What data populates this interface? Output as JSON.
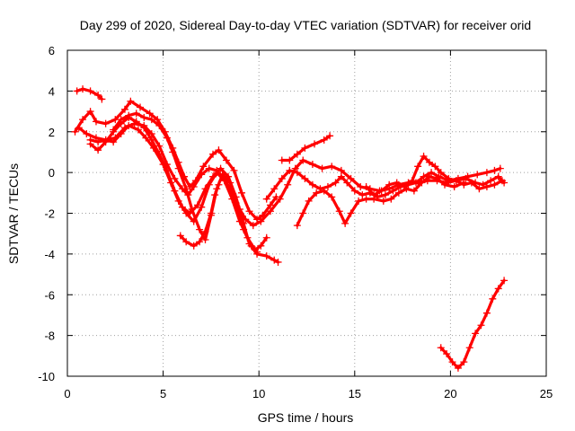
{
  "chart_data": {
    "type": "scatter",
    "title": "Day 299 of 2020, Sidereal Day-to-day VTEC variation (SDTVAR) for receiver orid",
    "xlabel": "GPS time / hours",
    "ylabel": "SDTVAR / TECUs",
    "xlim": [
      0,
      25
    ],
    "ylim": [
      -10,
      6
    ],
    "xticks": [
      0,
      5,
      10,
      15,
      20,
      25
    ],
    "xtick_labels": [
      "0",
      "5",
      "10",
      "15",
      "20",
      "25"
    ],
    "yticks": [
      -10,
      -8,
      -6,
      -4,
      -2,
      0,
      2,
      4,
      6
    ],
    "ytick_labels": [
      "-10",
      "-8",
      "-6",
      "-4",
      "-2",
      "0",
      "2",
      "4",
      "6"
    ],
    "grid": true,
    "marker": "+",
    "color": "#ff0000",
    "series": [
      {
        "name": "s1",
        "points": [
          [
            0.5,
            4.0
          ],
          [
            0.8,
            4.1
          ],
          [
            1.2,
            4.0
          ],
          [
            1.6,
            3.8
          ],
          [
            1.8,
            3.6
          ]
        ]
      },
      {
        "name": "s2",
        "points": [
          [
            0.4,
            2.0
          ],
          [
            0.8,
            2.6
          ],
          [
            1.2,
            3.0
          ],
          [
            1.5,
            2.5
          ],
          [
            2.0,
            2.4
          ],
          [
            2.5,
            2.6
          ],
          [
            3.0,
            3.1
          ],
          [
            3.3,
            3.5
          ],
          [
            3.8,
            3.2
          ],
          [
            4.3,
            2.9
          ],
          [
            4.7,
            2.6
          ],
          [
            5.1,
            2.0
          ],
          [
            5.5,
            1.2
          ],
          [
            5.8,
            0.5
          ],
          [
            6.1,
            -0.2
          ],
          [
            6.4,
            -0.7
          ],
          [
            6.7,
            -0.4
          ],
          [
            7.1,
            0.3
          ],
          [
            7.6,
            0.9
          ],
          [
            7.9,
            1.1
          ],
          [
            8.3,
            0.6
          ],
          [
            8.7,
            0.1
          ],
          [
            9.1,
            -1.0
          ],
          [
            9.5,
            -1.9
          ],
          [
            9.9,
            -2.3
          ],
          [
            10.2,
            -2.1
          ],
          [
            10.6,
            -1.6
          ],
          [
            10.9,
            -1.2
          ]
        ]
      },
      {
        "name": "s3",
        "points": [
          [
            0.6,
            2.2
          ],
          [
            1.0,
            1.9
          ],
          [
            1.5,
            1.7
          ],
          [
            2.0,
            1.6
          ],
          [
            2.5,
            1.7
          ],
          [
            3.0,
            2.2
          ],
          [
            3.5,
            2.4
          ],
          [
            4.0,
            2.3
          ],
          [
            4.4,
            1.9
          ],
          [
            4.8,
            1.3
          ],
          [
            5.2,
            0.4
          ],
          [
            5.6,
            -0.3
          ],
          [
            6.0,
            -0.8
          ],
          [
            6.3,
            -1.1
          ],
          [
            6.6,
            -0.7
          ],
          [
            7.0,
            -0.1
          ],
          [
            7.4,
            0.2
          ],
          [
            7.8,
            0.1
          ],
          [
            8.2,
            -0.3
          ],
          [
            8.6,
            -1.0
          ],
          [
            9.0,
            -1.8
          ],
          [
            9.3,
            -2.3
          ],
          [
            9.7,
            -2.6
          ],
          [
            10.1,
            -2.4
          ],
          [
            10.6,
            -1.9
          ],
          [
            11.1,
            -1.3
          ],
          [
            11.5,
            -0.6
          ],
          [
            11.9,
            0.2
          ],
          [
            12.3,
            0.6
          ],
          [
            12.8,
            0.4
          ],
          [
            13.3,
            0.2
          ],
          [
            13.8,
            0.3
          ],
          [
            14.3,
            0.1
          ],
          [
            14.8,
            -0.3
          ],
          [
            15.3,
            -0.7
          ],
          [
            15.8,
            -0.8
          ],
          [
            16.3,
            -0.9
          ],
          [
            16.8,
            -0.8
          ],
          [
            17.3,
            -0.6
          ],
          [
            17.8,
            -0.5
          ],
          [
            18.3,
            -0.5
          ],
          [
            18.8,
            -0.4
          ],
          [
            19.3,
            -0.4
          ],
          [
            19.8,
            -0.5
          ],
          [
            20.3,
            -0.4
          ],
          [
            20.8,
            -0.3
          ],
          [
            21.3,
            -0.5
          ],
          [
            21.7,
            -0.6
          ],
          [
            22.1,
            -0.4
          ],
          [
            22.5,
            -0.2
          ],
          [
            22.8,
            -0.5
          ]
        ]
      },
      {
        "name": "s4",
        "points": [
          [
            1.2,
            1.6
          ],
          [
            1.6,
            1.5
          ],
          [
            2.0,
            1.6
          ],
          [
            2.4,
            1.5
          ],
          [
            2.8,
            1.9
          ],
          [
            3.2,
            2.3
          ],
          [
            3.7,
            2.1
          ],
          [
            4.1,
            1.7
          ],
          [
            4.5,
            1.2
          ],
          [
            5.0,
            0.4
          ],
          [
            5.4,
            -0.5
          ],
          [
            5.8,
            -1.4
          ],
          [
            6.2,
            -2.0
          ],
          [
            6.6,
            -2.4
          ],
          [
            7.0,
            -1.7
          ],
          [
            7.4,
            -0.6
          ],
          [
            7.8,
            0.0
          ],
          [
            8.2,
            -0.4
          ],
          [
            8.6,
            -1.3
          ],
          [
            9.0,
            -2.4
          ],
          [
            9.4,
            -3.2
          ],
          [
            9.8,
            -3.8
          ],
          [
            10.1,
            -3.6
          ],
          [
            10.4,
            -3.2
          ]
        ]
      },
      {
        "name": "s5",
        "points": [
          [
            1.2,
            1.4
          ],
          [
            1.6,
            1.1
          ],
          [
            2.0,
            1.5
          ],
          [
            2.4,
            2.0
          ],
          [
            2.8,
            2.4
          ],
          [
            3.2,
            2.7
          ],
          [
            3.6,
            2.5
          ],
          [
            4.0,
            2.2
          ],
          [
            4.4,
            1.6
          ],
          [
            4.8,
            0.9
          ],
          [
            5.2,
            0.1
          ],
          [
            5.6,
            -0.9
          ],
          [
            6.0,
            -1.7
          ],
          [
            6.4,
            -2.0
          ],
          [
            6.8,
            -1.6
          ],
          [
            7.2,
            -0.8
          ],
          [
            7.6,
            -0.2
          ],
          [
            8.0,
            0.2
          ],
          [
            8.4,
            -0.2
          ],
          [
            8.8,
            -1.2
          ],
          [
            9.2,
            -2.5
          ],
          [
            9.5,
            -3.5
          ],
          [
            9.9,
            -4.0
          ],
          [
            10.4,
            -4.1
          ],
          [
            10.8,
            -4.3
          ],
          [
            11.0,
            -4.4
          ]
        ]
      },
      {
        "name": "s6",
        "points": [
          [
            2.4,
            2.1
          ],
          [
            2.8,
            2.6
          ],
          [
            3.2,
            2.8
          ],
          [
            3.6,
            2.9
          ],
          [
            4.0,
            2.7
          ],
          [
            4.4,
            2.6
          ],
          [
            4.8,
            2.3
          ],
          [
            5.2,
            1.7
          ],
          [
            5.5,
            1.0
          ],
          [
            5.8,
            0.2
          ],
          [
            6.2,
            -0.8
          ],
          [
            6.5,
            -1.8
          ],
          [
            6.9,
            -2.8
          ],
          [
            7.2,
            -3.3
          ],
          [
            7.5,
            -2.1
          ],
          [
            7.8,
            -0.8
          ],
          [
            8.1,
            -0.1
          ],
          [
            8.5,
            -0.5
          ],
          [
            8.8,
            -1.5
          ],
          [
            9.2,
            -2.8
          ],
          [
            9.6,
            -3.6
          ],
          [
            9.9,
            -3.9
          ]
        ]
      },
      {
        "name": "s7",
        "points": [
          [
            5.9,
            -3.1
          ],
          [
            6.2,
            -3.4
          ],
          [
            6.6,
            -3.6
          ],
          [
            6.9,
            -3.4
          ],
          [
            7.2,
            -2.9
          ],
          [
            7.5,
            -2.0
          ],
          [
            7.7,
            -1.1
          ],
          [
            7.9,
            -0.6
          ]
        ]
      },
      {
        "name": "s8",
        "points": [
          [
            11.2,
            0.6
          ],
          [
            11.6,
            0.6
          ],
          [
            12.0,
            0.9
          ],
          [
            12.4,
            1.2
          ],
          [
            12.9,
            1.4
          ],
          [
            13.4,
            1.6
          ],
          [
            13.7,
            1.8
          ]
        ]
      },
      {
        "name": "s9",
        "points": [
          [
            12.0,
            -2.6
          ],
          [
            12.3,
            -2.0
          ],
          [
            12.6,
            -1.4
          ],
          [
            13.0,
            -1.0
          ],
          [
            13.4,
            -0.9
          ],
          [
            13.8,
            -1.2
          ],
          [
            14.2,
            -1.9
          ],
          [
            14.5,
            -2.5
          ],
          [
            14.8,
            -2.0
          ],
          [
            15.2,
            -1.4
          ],
          [
            15.6,
            -1.3
          ],
          [
            16.0,
            -1.3
          ],
          [
            16.5,
            -1.4
          ],
          [
            16.9,
            -1.3
          ],
          [
            17.3,
            -1.0
          ],
          [
            17.7,
            -0.8
          ],
          [
            18.1,
            -0.9
          ],
          [
            18.5,
            -0.5
          ],
          [
            18.9,
            -0.2
          ],
          [
            19.3,
            -0.3
          ],
          [
            19.7,
            -0.6
          ],
          [
            20.2,
            -0.7
          ],
          [
            20.7,
            -0.5
          ]
        ]
      },
      {
        "name": "s10",
        "points": [
          [
            10.4,
            -1.3
          ],
          [
            10.8,
            -0.8
          ],
          [
            11.2,
            -0.3
          ],
          [
            11.6,
            0.1
          ],
          [
            12.0,
            0.0
          ],
          [
            12.4,
            -0.3
          ],
          [
            12.8,
            -0.6
          ],
          [
            13.2,
            -0.8
          ],
          [
            13.6,
            -0.7
          ],
          [
            14.0,
            -0.5
          ],
          [
            14.3,
            -0.2
          ],
          [
            14.6,
            -0.5
          ],
          [
            15.0,
            -0.9
          ],
          [
            15.4,
            -1.1
          ],
          [
            15.8,
            -1.0
          ],
          [
            16.2,
            -1.2
          ],
          [
            16.6,
            -1.1
          ],
          [
            17.0,
            -0.9
          ],
          [
            17.4,
            -0.7
          ],
          [
            17.8,
            -0.6
          ],
          [
            18.2,
            -0.5
          ],
          [
            18.6,
            -0.2
          ],
          [
            19.0,
            0.0
          ],
          [
            19.4,
            -0.2
          ],
          [
            19.9,
            -0.4
          ],
          [
            20.4,
            -0.3
          ],
          [
            20.9,
            -0.2
          ],
          [
            21.4,
            -0.1
          ],
          [
            21.9,
            0.0
          ],
          [
            22.3,
            0.1
          ],
          [
            22.6,
            0.2
          ]
        ]
      },
      {
        "name": "s11",
        "points": [
          [
            15.6,
            -0.7
          ],
          [
            16.0,
            -1.1
          ],
          [
            16.4,
            -0.9
          ],
          [
            16.8,
            -0.6
          ],
          [
            17.2,
            -0.5
          ],
          [
            17.6,
            -0.7
          ],
          [
            18.0,
            -0.4
          ],
          [
            18.3,
            0.3
          ],
          [
            18.6,
            0.8
          ],
          [
            18.9,
            0.5
          ],
          [
            19.2,
            0.3
          ],
          [
            19.5,
            0.0
          ],
          [
            19.9,
            -0.3
          ],
          [
            20.3,
            -0.4
          ],
          [
            20.7,
            -0.6
          ],
          [
            21.1,
            -0.5
          ],
          [
            21.5,
            -0.8
          ],
          [
            21.9,
            -0.7
          ],
          [
            22.3,
            -0.6
          ],
          [
            22.7,
            -0.4
          ]
        ]
      },
      {
        "name": "s12",
        "points": [
          [
            19.5,
            -8.6
          ],
          [
            19.8,
            -8.9
          ],
          [
            20.1,
            -9.3
          ],
          [
            20.4,
            -9.6
          ],
          [
            20.7,
            -9.3
          ],
          [
            21.0,
            -8.6
          ],
          [
            21.3,
            -7.9
          ],
          [
            21.6,
            -7.5
          ],
          [
            21.9,
            -6.9
          ],
          [
            22.2,
            -6.2
          ],
          [
            22.5,
            -5.7
          ],
          [
            22.8,
            -5.3
          ]
        ]
      }
    ]
  }
}
